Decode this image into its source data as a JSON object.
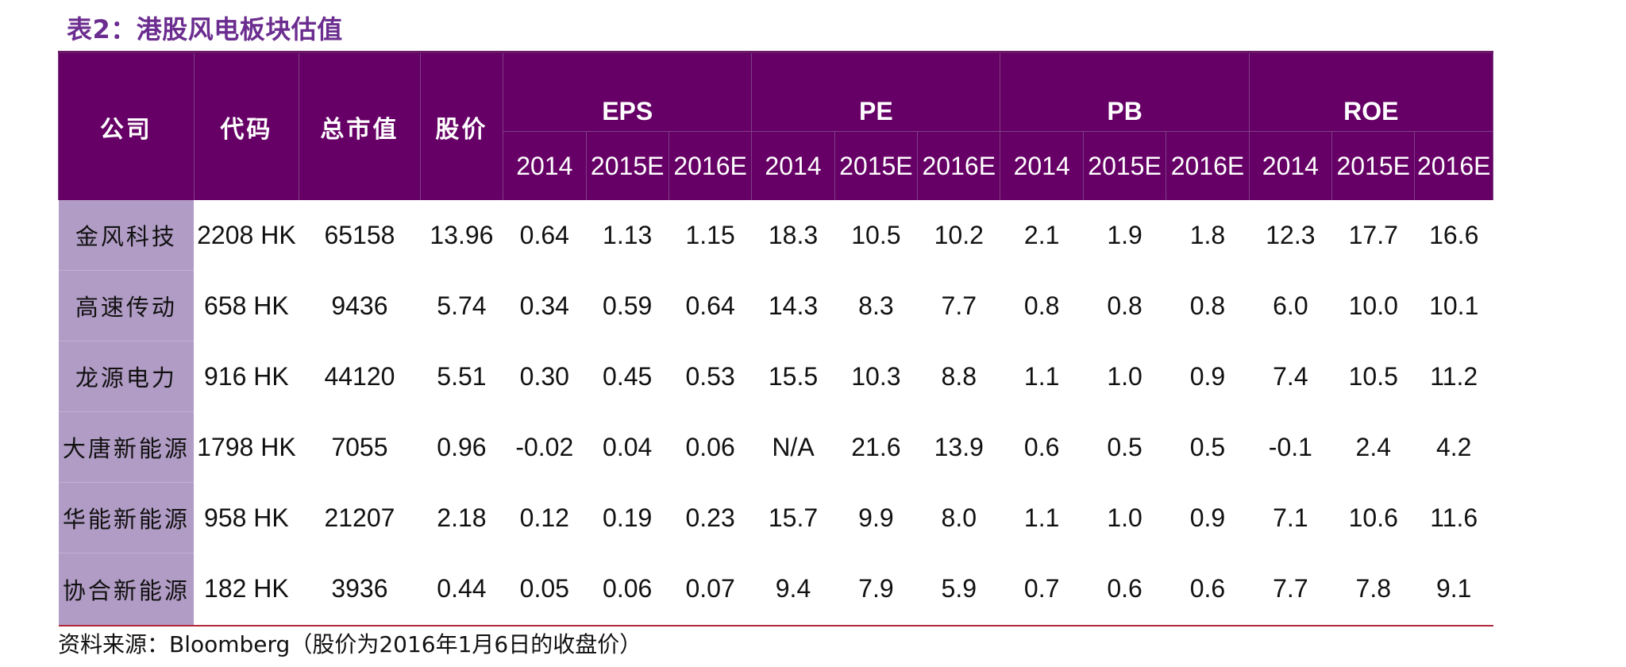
{
  "title": "表2：港股风电板块估值",
  "table": {
    "columns": {
      "company": "公司",
      "code": "代码",
      "market_cap": "总市值",
      "price": "股价",
      "groups": [
        {
          "name": "EPS",
          "years": [
            "2014",
            "2015E",
            "2016E"
          ]
        },
        {
          "name": "PE",
          "years": [
            "2014",
            "2015E",
            "2016E"
          ]
        },
        {
          "name": "PB",
          "years": [
            "2014",
            "2015E",
            "2016E"
          ]
        },
        {
          "name": "ROE",
          "years": [
            "2014",
            "2015E",
            "2016E"
          ]
        }
      ]
    },
    "rows": [
      {
        "company": "金风科技",
        "code": "2208 HK",
        "market_cap": "65158",
        "price": "13.96",
        "eps": [
          "0.64",
          "1.13",
          "1.15"
        ],
        "pe": [
          "18.3",
          "10.5",
          "10.2"
        ],
        "pb": [
          "2.1",
          "1.9",
          "1.8"
        ],
        "roe": [
          "12.3",
          "17.7",
          "16.6"
        ]
      },
      {
        "company": "高速传动",
        "code": "658 HK",
        "market_cap": "9436",
        "price": "5.74",
        "eps": [
          "0.34",
          "0.59",
          "0.64"
        ],
        "pe": [
          "14.3",
          "8.3",
          "7.7"
        ],
        "pb": [
          "0.8",
          "0.8",
          "0.8"
        ],
        "roe": [
          "6.0",
          "10.0",
          "10.1"
        ]
      },
      {
        "company": "龙源电力",
        "code": "916 HK",
        "market_cap": "44120",
        "price": "5.51",
        "eps": [
          "0.30",
          "0.45",
          "0.53"
        ],
        "pe": [
          "15.5",
          "10.3",
          "8.8"
        ],
        "pb": [
          "1.1",
          "1.0",
          "0.9"
        ],
        "roe": [
          "7.4",
          "10.5",
          "11.2"
        ]
      },
      {
        "company": "大唐新能源",
        "code": "1798 HK",
        "market_cap": "7055",
        "price": "0.96",
        "eps": [
          "-0.02",
          "0.04",
          "0.06"
        ],
        "pe": [
          "N/A",
          "21.6",
          "13.9"
        ],
        "pb": [
          "0.6",
          "0.5",
          "0.5"
        ],
        "roe": [
          "-0.1",
          "2.4",
          "4.2"
        ]
      },
      {
        "company": "华能新能源",
        "code": "958 HK",
        "market_cap": "21207",
        "price": "2.18",
        "eps": [
          "0.12",
          "0.19",
          "0.23"
        ],
        "pe": [
          "15.7",
          "9.9",
          "8.0"
        ],
        "pb": [
          "1.1",
          "1.0",
          "0.9"
        ],
        "roe": [
          "7.1",
          "10.6",
          "11.6"
        ]
      },
      {
        "company": "协合新能源",
        "code": "182 HK",
        "market_cap": "3936",
        "price": "0.44",
        "eps": [
          "0.05",
          "0.06",
          "0.07"
        ],
        "pe": [
          "9.4",
          "7.9",
          "5.9"
        ],
        "pb": [
          "0.7",
          "0.6",
          "0.6"
        ],
        "roe": [
          "7.7",
          "7.8",
          "9.1"
        ]
      }
    ]
  },
  "source": "资料来源：Bloomberg（股价为2016年1月6日的收盘价）",
  "colors": {
    "title": "#6b2d8f",
    "header_bg": "#660066",
    "company_bg": "#b19cc5",
    "bottom_rule": "#b0283a"
  }
}
